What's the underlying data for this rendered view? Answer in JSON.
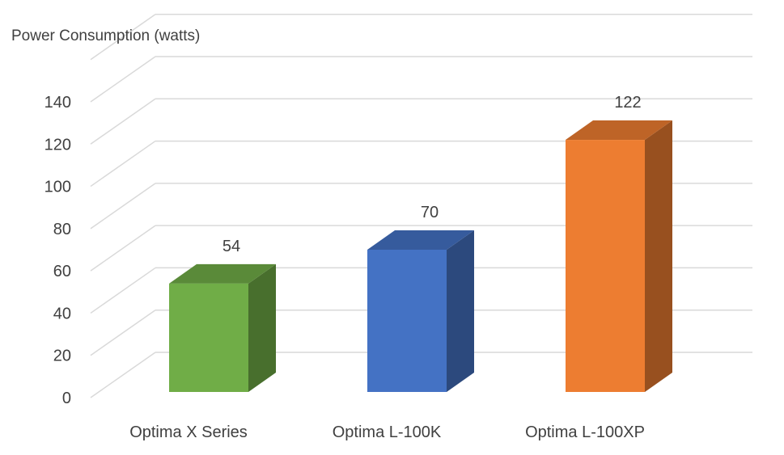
{
  "chart_data": {
    "type": "bar",
    "title": "",
    "ylabel": "Power Consumption (watts)",
    "xlabel": "",
    "categories": [
      "Optima X Series",
      "Optima  L-100K",
      "Optima  L-100XP"
    ],
    "values": [
      54,
      70,
      122
    ],
    "data_labels": [
      "54",
      "70",
      "122"
    ],
    "colors": [
      "#70AD47",
      "#4472C4",
      "#ED7D31"
    ],
    "ylim": [
      0,
      140
    ],
    "yticks": [
      "0",
      "20",
      "40",
      "60",
      "80",
      "100",
      "120",
      "140"
    ],
    "grid": true,
    "style": "3d-column",
    "legend": "none"
  }
}
